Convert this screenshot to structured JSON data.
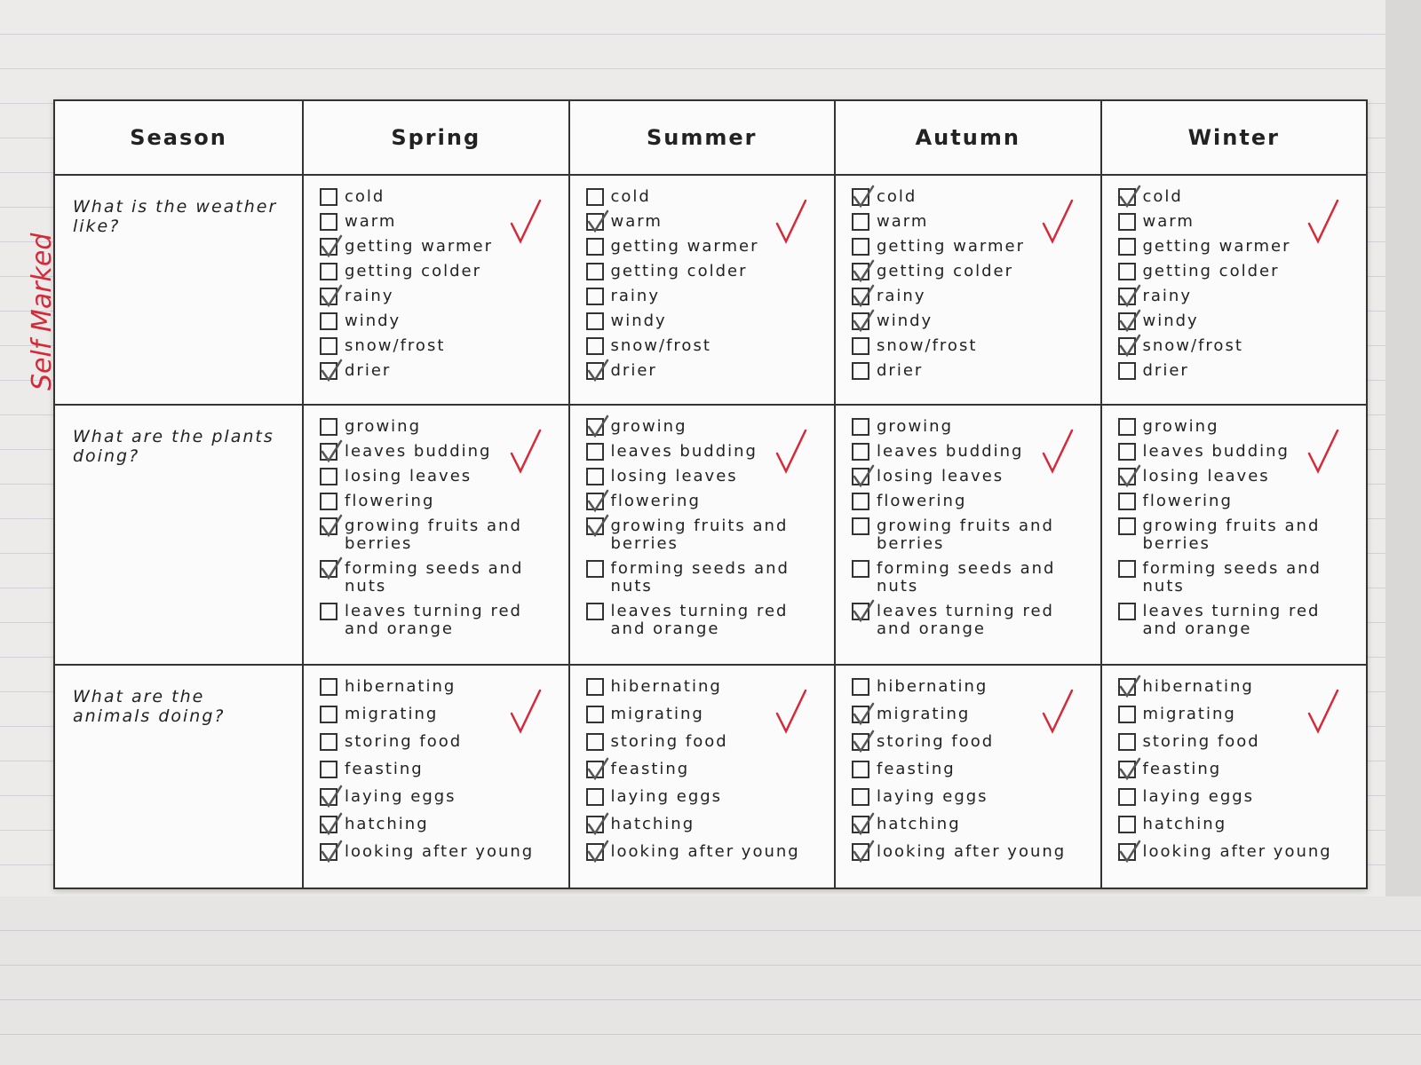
{
  "annotation": "Self Marked",
  "table": {
    "header": [
      "Season",
      "Spring",
      "Summer",
      "Autumn",
      "Winter"
    ],
    "rows": [
      {
        "question": "What is the weather like?",
        "cells": [
          [
            {
              "label": "cold",
              "checked": false
            },
            {
              "label": "warm",
              "checked": false
            },
            {
              "label": "getting warmer",
              "checked": true
            },
            {
              "label": "getting colder",
              "checked": false
            },
            {
              "label": "rainy",
              "checked": true
            },
            {
              "label": "windy",
              "checked": false
            },
            {
              "label": "snow/frost",
              "checked": false
            },
            {
              "label": "drier",
              "checked": true
            }
          ],
          [
            {
              "label": "cold",
              "checked": false
            },
            {
              "label": "warm",
              "checked": true
            },
            {
              "label": "getting warmer",
              "checked": false
            },
            {
              "label": "getting colder",
              "checked": false
            },
            {
              "label": "rainy",
              "checked": false
            },
            {
              "label": "windy",
              "checked": false
            },
            {
              "label": "snow/frost",
              "checked": false
            },
            {
              "label": "drier",
              "checked": true
            }
          ],
          [
            {
              "label": "cold",
              "checked": true
            },
            {
              "label": "warm",
              "checked": false
            },
            {
              "label": "getting warmer",
              "checked": false
            },
            {
              "label": "getting colder",
              "checked": true
            },
            {
              "label": "rainy",
              "checked": true
            },
            {
              "label": "windy",
              "checked": true
            },
            {
              "label": "snow/frost",
              "checked": false
            },
            {
              "label": "drier",
              "checked": false
            }
          ],
          [
            {
              "label": "cold",
              "checked": true
            },
            {
              "label": "warm",
              "checked": false
            },
            {
              "label": "getting warmer",
              "checked": false
            },
            {
              "label": "getting colder",
              "checked": false
            },
            {
              "label": "rainy",
              "checked": true
            },
            {
              "label": "windy",
              "checked": true
            },
            {
              "label": "snow/frost",
              "checked": true
            },
            {
              "label": "drier",
              "checked": false
            }
          ]
        ]
      },
      {
        "question": "What are the plants doing?",
        "cells": [
          [
            {
              "label": "growing",
              "checked": false
            },
            {
              "label": "leaves budding",
              "checked": true
            },
            {
              "label": "losing leaves",
              "checked": false
            },
            {
              "label": "flowering",
              "checked": false
            },
            {
              "label": "growing fruits and berries",
              "checked": true
            },
            {
              "label": "forming seeds and nuts",
              "checked": true
            },
            {
              "label": "leaves turning red and orange",
              "checked": false
            }
          ],
          [
            {
              "label": "growing",
              "checked": true
            },
            {
              "label": "leaves budding",
              "checked": false
            },
            {
              "label": "losing leaves",
              "checked": false
            },
            {
              "label": "flowering",
              "checked": true
            },
            {
              "label": "growing fruits and berries",
              "checked": true
            },
            {
              "label": "forming seeds and nuts",
              "checked": false
            },
            {
              "label": "leaves turning red and orange",
              "checked": false
            }
          ],
          [
            {
              "label": "growing",
              "checked": false
            },
            {
              "label": "leaves budding",
              "checked": false
            },
            {
              "label": "losing leaves",
              "checked": true
            },
            {
              "label": "flowering",
              "checked": false
            },
            {
              "label": "growing fruits and berries",
              "checked": false
            },
            {
              "label": "forming seeds and nuts",
              "checked": false
            },
            {
              "label": "leaves turning red and orange",
              "checked": true
            }
          ],
          [
            {
              "label": "growing",
              "checked": false
            },
            {
              "label": "leaves budding",
              "checked": false
            },
            {
              "label": "losing leaves",
              "checked": true
            },
            {
              "label": "flowering",
              "checked": false
            },
            {
              "label": "growing fruits and berries",
              "checked": false
            },
            {
              "label": "forming seeds and nuts",
              "checked": false
            },
            {
              "label": "leaves turning red and orange",
              "checked": false
            }
          ]
        ]
      },
      {
        "question": "What are the animals doing?",
        "cells": [
          [
            {
              "label": "hibernating",
              "checked": false
            },
            {
              "label": "migrating",
              "checked": false
            },
            {
              "label": "storing food",
              "checked": false
            },
            {
              "label": "feasting",
              "checked": false
            },
            {
              "label": "laying eggs",
              "checked": true
            },
            {
              "label": "hatching",
              "checked": true
            },
            {
              "label": "looking after young",
              "checked": true
            }
          ],
          [
            {
              "label": "hibernating",
              "checked": false
            },
            {
              "label": "migrating",
              "checked": false
            },
            {
              "label": "storing food",
              "checked": false
            },
            {
              "label": "feasting",
              "checked": true
            },
            {
              "label": "laying eggs",
              "checked": false
            },
            {
              "label": "hatching",
              "checked": true
            },
            {
              "label": "looking after young",
              "checked": true
            }
          ],
          [
            {
              "label": "hibernating",
              "checked": false
            },
            {
              "label": "migrating",
              "checked": true
            },
            {
              "label": "storing food",
              "checked": true
            },
            {
              "label": "feasting",
              "checked": false
            },
            {
              "label": "laying eggs",
              "checked": false
            },
            {
              "label": "hatching",
              "checked": true
            },
            {
              "label": "looking after young",
              "checked": true
            }
          ],
          [
            {
              "label": "hibernating",
              "checked": true
            },
            {
              "label": "migrating",
              "checked": false
            },
            {
              "label": "storing food",
              "checked": false
            },
            {
              "label": "feasting",
              "checked": true
            },
            {
              "label": "laying eggs",
              "checked": false
            },
            {
              "label": "hatching",
              "checked": false
            },
            {
              "label": "looking after young",
              "checked": true
            }
          ]
        ]
      }
    ]
  }
}
